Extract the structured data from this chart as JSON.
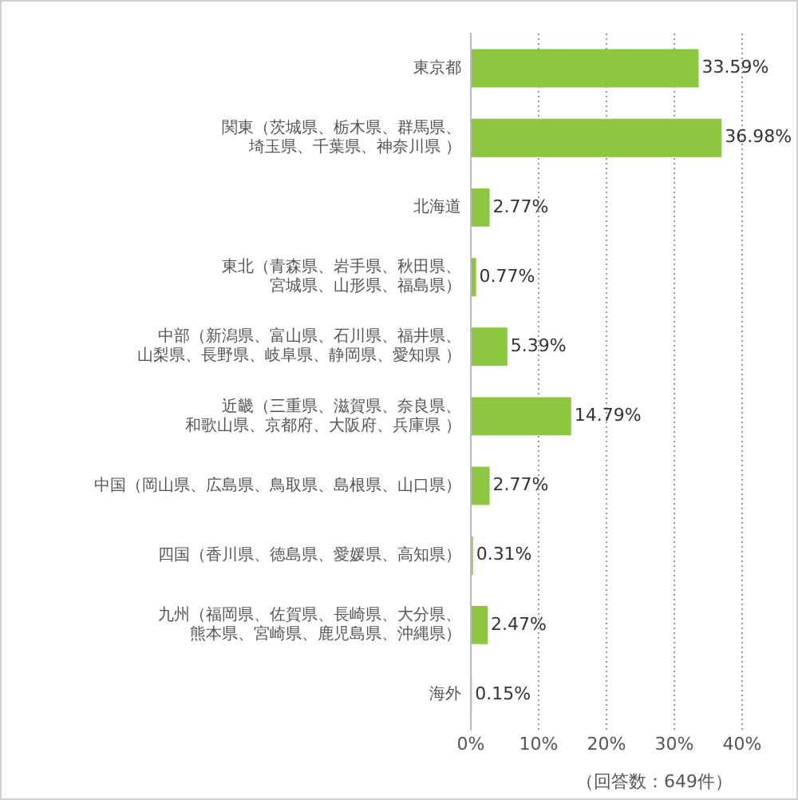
{
  "chart_data": {
    "type": "bar",
    "orientation": "horizontal",
    "categories": [
      "東京都",
      "関東（茨城県、栃木県、群馬県、埼玉県、千葉県、神奈川県 ）",
      "北海道",
      "東北（青森県、岩手県、秋田県、宮城県、山形県、福島県）",
      "中部（新潟県、富山県、石川県、福井県、山梨県、長野県、岐阜県、静岡県、愛知県 ）",
      "近畿（三重県、滋賀県、奈良県、和歌山県、京都府、大阪府、兵庫県 ）",
      "中国（岡山県、広島県、鳥取県、島根県、山口県）",
      "四国（香川県、徳島県、愛媛県、高知県）",
      "九州（福岡県、佐賀県、長崎県、大分県、熊本県、宮崎県、鹿児島県、沖縄県）",
      "海外"
    ],
    "values": [
      33.59,
      36.98,
      2.77,
      0.77,
      5.39,
      14.79,
      2.77,
      0.31,
      2.47,
      0.15
    ],
    "color": "#8dc63f",
    "xlim": [
      0,
      40
    ],
    "xticks": [
      {
        "value": 0,
        "label": "0%"
      },
      {
        "value": 10,
        "label": "10%"
      },
      {
        "value": 20,
        "label": "20%"
      },
      {
        "value": 30,
        "label": "30%"
      },
      {
        "value": 40,
        "label": "40%"
      }
    ],
    "grid": "x",
    "legend": false,
    "value_labels": [
      "33.59%",
      "36.98%",
      "2.77%",
      "0.77%",
      "5.39%",
      "14.79%",
      "2.77%",
      "0.31%",
      "2.47%",
      "0.15%"
    ],
    "annotations": [
      "（回答数：649件）"
    ]
  }
}
